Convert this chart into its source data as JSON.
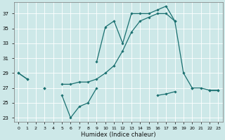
{
  "xlabel": "Humidex (Indice chaleur)",
  "background_color": "#cde8e8",
  "grid_color": "#ffffff",
  "line_color": "#1a7070",
  "ylim": [
    22.5,
    38.5
  ],
  "xlim": [
    -0.5,
    23.5
  ],
  "yticks": [
    23,
    25,
    27,
    29,
    31,
    33,
    35,
    37
  ],
  "curve_upper": [
    29,
    28.2,
    null,
    null,
    null,
    null,
    null,
    null,
    null,
    30.5,
    35.2,
    36.0,
    33.0,
    37.0,
    37.0,
    37.0,
    37.5,
    38.0,
    36.0,
    null,
    null,
    null,
    null,
    null
  ],
  "curve_middle": [
    29,
    28.2,
    null,
    27.0,
    null,
    27.5,
    27.5,
    27.8,
    27.8,
    28.2,
    29.0,
    30.0,
    32.0,
    34.5,
    36.0,
    36.5,
    37.0,
    37.0,
    36.0,
    29.0,
    27.0,
    27.0,
    26.7,
    26.7
  ],
  "curve_lower": [
    null,
    null,
    null,
    27.0,
    null,
    26.0,
    23.0,
    24.5,
    25.0,
    27.0,
    null,
    null,
    null,
    null,
    null,
    null,
    26.0,
    26.2,
    26.5,
    null,
    27.0,
    null,
    26.7,
    26.7
  ]
}
